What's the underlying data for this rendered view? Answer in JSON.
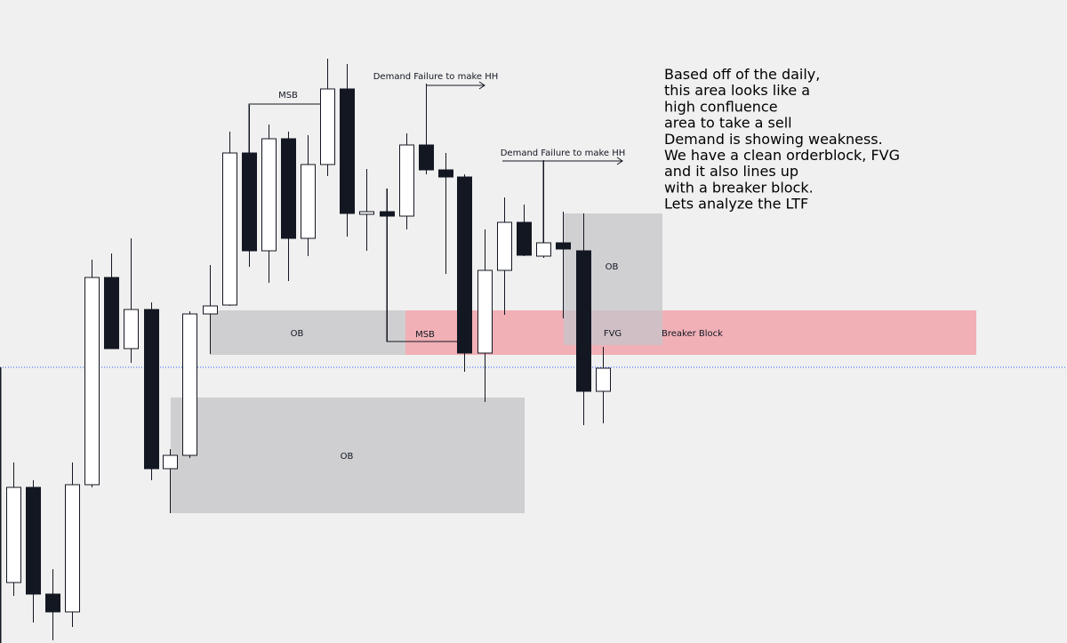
{
  "labels": {
    "msb_top": "MSB",
    "msb_low": "MSB",
    "ob_left": "OB",
    "ob_right": "OB",
    "ob_low": "OB",
    "fvg": "FVG",
    "breaker": "Breaker Block",
    "demand_1": "Demand Failure to make HH",
    "demand_2": "Demand Failure to make HH"
  },
  "note": [
    "Based off of the daily,",
    "this area looks like a",
    "high confluence",
    "area to take a sell",
    "Demand is showing weakness.",
    "We have a clean orderblock, FVG",
    "and it also lines up",
    "with a breaker block.",
    "Lets analyze the LTF"
  ]
}
